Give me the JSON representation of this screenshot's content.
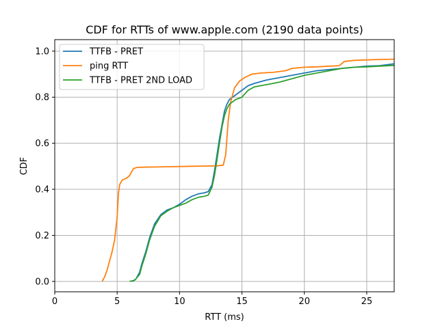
{
  "chart_data": {
    "type": "line",
    "title": "CDF for RTTs of www.apple.com (2190 data points)",
    "xlabel": "RTT (ms)",
    "ylabel": "CDF",
    "xlim": [
      0,
      27.2
    ],
    "ylim": [
      -0.045,
      1.05
    ],
    "xticks": [
      0,
      5,
      10,
      15,
      20,
      25
    ],
    "yticks": [
      0.0,
      0.2,
      0.4,
      0.6,
      0.8,
      1.0
    ],
    "xtick_labels": [
      "0",
      "5",
      "10",
      "15",
      "20",
      "25"
    ],
    "ytick_labels": [
      "0.0",
      "0.2",
      "0.4",
      "0.6",
      "0.8",
      "1.0"
    ],
    "grid": true,
    "legend_position": "top-left",
    "series": [
      {
        "name": "TTFB - PRET",
        "color": "#1f77b4",
        "points": [
          [
            6.2,
            0.0
          ],
          [
            6.5,
            0.01
          ],
          [
            6.8,
            0.04
          ],
          [
            7.0,
            0.08
          ],
          [
            7.3,
            0.13
          ],
          [
            7.6,
            0.19
          ],
          [
            8.0,
            0.25
          ],
          [
            8.5,
            0.29
          ],
          [
            9.0,
            0.31
          ],
          [
            9.5,
            0.32
          ],
          [
            10.0,
            0.335
          ],
          [
            10.5,
            0.355
          ],
          [
            11.0,
            0.37
          ],
          [
            11.5,
            0.38
          ],
          [
            12.0,
            0.385
          ],
          [
            12.3,
            0.39
          ],
          [
            12.6,
            0.42
          ],
          [
            12.8,
            0.48
          ],
          [
            13.0,
            0.55
          ],
          [
            13.2,
            0.62
          ],
          [
            13.4,
            0.68
          ],
          [
            13.6,
            0.74
          ],
          [
            13.8,
            0.77
          ],
          [
            14.0,
            0.79
          ],
          [
            14.5,
            0.81
          ],
          [
            15.0,
            0.83
          ],
          [
            15.5,
            0.85
          ],
          [
            16.0,
            0.86
          ],
          [
            17.0,
            0.875
          ],
          [
            18.0,
            0.885
          ],
          [
            19.0,
            0.895
          ],
          [
            20.0,
            0.905
          ],
          [
            21.0,
            0.915
          ],
          [
            22.0,
            0.92
          ],
          [
            23.0,
            0.925
          ],
          [
            24.0,
            0.93
          ],
          [
            25.0,
            0.935
          ],
          [
            26.0,
            0.937
          ],
          [
            27.2,
            0.945
          ]
        ]
      },
      {
        "name": "ping RTT",
        "color": "#ff7f0e",
        "points": [
          [
            3.8,
            0.0
          ],
          [
            4.0,
            0.02
          ],
          [
            4.2,
            0.05
          ],
          [
            4.4,
            0.09
          ],
          [
            4.6,
            0.13
          ],
          [
            4.8,
            0.18
          ],
          [
            5.0,
            0.28
          ],
          [
            5.1,
            0.38
          ],
          [
            5.2,
            0.42
          ],
          [
            5.4,
            0.44
          ],
          [
            5.8,
            0.45
          ],
          [
            6.0,
            0.46
          ],
          [
            6.3,
            0.49
          ],
          [
            6.6,
            0.495
          ],
          [
            7.0,
            0.496
          ],
          [
            8.0,
            0.497
          ],
          [
            9.0,
            0.498
          ],
          [
            10.0,
            0.499
          ],
          [
            11.0,
            0.5
          ],
          [
            12.0,
            0.501
          ],
          [
            13.0,
            0.502
          ],
          [
            13.5,
            0.505
          ],
          [
            13.7,
            0.55
          ],
          [
            13.9,
            0.7
          ],
          [
            14.1,
            0.78
          ],
          [
            14.4,
            0.84
          ],
          [
            14.8,
            0.87
          ],
          [
            15.2,
            0.885
          ],
          [
            15.8,
            0.9
          ],
          [
            16.5,
            0.905
          ],
          [
            17.5,
            0.908
          ],
          [
            18.5,
            0.915
          ],
          [
            19.0,
            0.925
          ],
          [
            20.0,
            0.93
          ],
          [
            21.0,
            0.932
          ],
          [
            22.0,
            0.935
          ],
          [
            22.8,
            0.937
          ],
          [
            23.2,
            0.955
          ],
          [
            24.0,
            0.96
          ],
          [
            25.0,
            0.962
          ],
          [
            26.0,
            0.964
          ],
          [
            27.2,
            0.965
          ]
        ]
      },
      {
        "name": "TTFB - PRET 2ND LOAD",
        "color": "#2ca02c",
        "points": [
          [
            6.0,
            0.0
          ],
          [
            6.4,
            0.005
          ],
          [
            6.8,
            0.03
          ],
          [
            7.0,
            0.07
          ],
          [
            7.3,
            0.12
          ],
          [
            7.6,
            0.18
          ],
          [
            8.0,
            0.24
          ],
          [
            8.5,
            0.285
          ],
          [
            9.0,
            0.305
          ],
          [
            9.5,
            0.32
          ],
          [
            10.0,
            0.33
          ],
          [
            10.5,
            0.34
          ],
          [
            11.0,
            0.355
          ],
          [
            11.5,
            0.365
          ],
          [
            12.0,
            0.37
          ],
          [
            12.3,
            0.375
          ],
          [
            12.6,
            0.41
          ],
          [
            12.8,
            0.46
          ],
          [
            13.0,
            0.53
          ],
          [
            13.2,
            0.6
          ],
          [
            13.4,
            0.67
          ],
          [
            13.6,
            0.72
          ],
          [
            13.8,
            0.75
          ],
          [
            14.0,
            0.77
          ],
          [
            14.5,
            0.79
          ],
          [
            15.0,
            0.8
          ],
          [
            15.5,
            0.83
          ],
          [
            16.0,
            0.845
          ],
          [
            17.0,
            0.855
          ],
          [
            18.0,
            0.865
          ],
          [
            19.0,
            0.88
          ],
          [
            20.0,
            0.895
          ],
          [
            21.0,
            0.905
          ],
          [
            22.0,
            0.915
          ],
          [
            23.0,
            0.925
          ],
          [
            24.0,
            0.93
          ],
          [
            25.0,
            0.932
          ],
          [
            26.0,
            0.935
          ],
          [
            27.2,
            0.938
          ]
        ]
      }
    ]
  }
}
